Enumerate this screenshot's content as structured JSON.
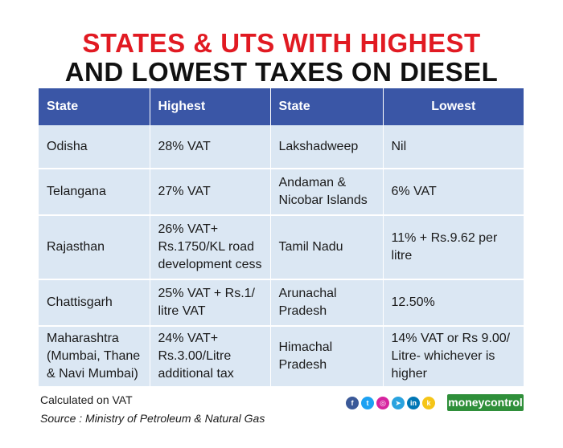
{
  "title": {
    "line1": "STATES & UTS WITH HIGHEST",
    "line2": "AND LOWEST TAXES ON DIESEL"
  },
  "table": {
    "headers": [
      "State",
      "Highest",
      "State",
      "Lowest"
    ],
    "rows": [
      {
        "state_high": [
          "Odisha"
        ],
        "highest": [
          "28% VAT"
        ],
        "state_low": [
          "Lakshadweep"
        ],
        "lowest": [
          "Nil"
        ]
      },
      {
        "state_high": [
          "Telangana"
        ],
        "highest": [
          "27% VAT"
        ],
        "state_low": [
          "Andaman &",
          "Nicobar Islands"
        ],
        "lowest": [
          "6% VAT"
        ]
      },
      {
        "state_high": [
          "Rajasthan"
        ],
        "highest": [
          "26% VAT+",
          "Rs.1750/KL road",
          "development cess"
        ],
        "state_low": [
          "Tamil Nadu"
        ],
        "lowest": [
          "11% + Rs.9.62 per litre"
        ]
      },
      {
        "state_high": [
          "Chattisgarh"
        ],
        "highest": [
          "25% VAT + Rs.1/",
          "litre VAT"
        ],
        "state_low": [
          "Arunachal",
          "Pradesh"
        ],
        "lowest": [
          "12.50%"
        ]
      },
      {
        "state_high": [
          "Maharashtra",
          "(Mumbai, Thane",
          "& Navi Mumbai)"
        ],
        "highest": [
          "24% VAT+",
          "Rs.3.00/Litre",
          "additional tax"
        ],
        "state_low": [
          "Himachal",
          "Pradesh"
        ],
        "lowest": [
          "14% VAT or Rs 9.00/",
          "Litre- whichever is",
          "higher"
        ]
      }
    ]
  },
  "footer": {
    "note": "Calculated on VAT",
    "source": "Source : Ministry of Petroleum & Natural Gas",
    "brand": "moneycontrol"
  },
  "social_icons": [
    {
      "icon": "facebook-icon",
      "glyph": "f",
      "color": "#3b5998"
    },
    {
      "icon": "twitter-icon",
      "glyph": "t",
      "color": "#1da1f2"
    },
    {
      "icon": "instagram-icon",
      "glyph": "◎",
      "color": "#d6249f"
    },
    {
      "icon": "telegram-icon",
      "glyph": "➤",
      "color": "#2aa3df"
    },
    {
      "icon": "linkedin-icon",
      "glyph": "in",
      "color": "#0077b5"
    },
    {
      "icon": "koo-icon",
      "glyph": "k",
      "color": "#f5c518"
    }
  ],
  "colors": {
    "title_red": "#e11a22",
    "header_blue": "#3a56a6",
    "row_bg": "#dbe7f3",
    "brand_green": "#2f8f3a"
  }
}
